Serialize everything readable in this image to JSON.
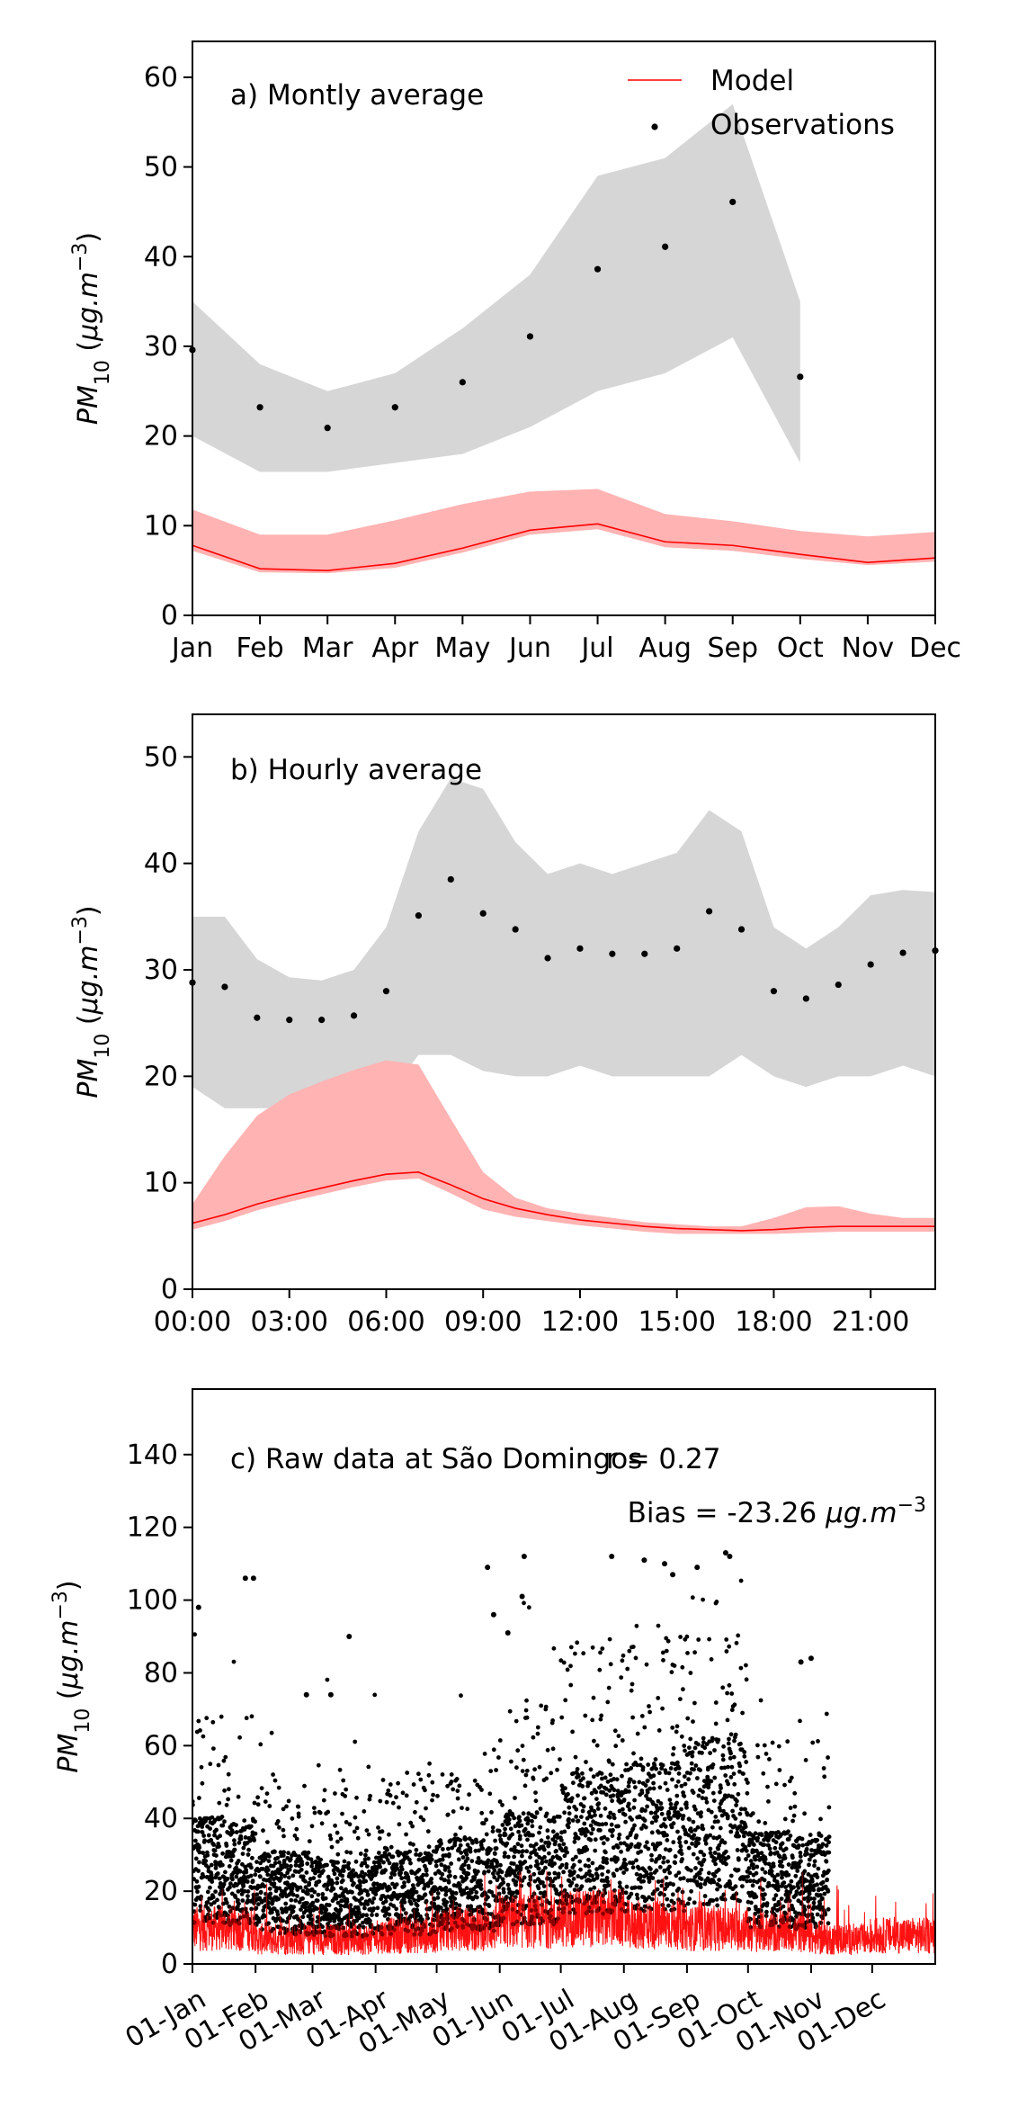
{
  "colors": {
    "model": "#ff0000",
    "model_band": "#ffb3b3",
    "obs": "#000000",
    "obs_band": "#d6d6d6"
  },
  "ylabel": "PM10 (μg.m−3)",
  "legend": {
    "model": "Model",
    "observations": "Observations"
  },
  "chart_data": [
    {
      "type": "line",
      "panel_label": "a) Montly average",
      "categories": [
        "Jan",
        "Feb",
        "Mar",
        "Apr",
        "May",
        "Jun",
        "Jul",
        "Aug",
        "Sep",
        "Oct",
        "Nov",
        "Dec"
      ],
      "ylim": [
        0,
        64
      ],
      "yticks": [
        0,
        10,
        20,
        30,
        40,
        50,
        60
      ],
      "series": [
        {
          "name": "Model",
          "values": [
            7.8,
            5.2,
            5.0,
            5.8,
            7.5,
            9.5,
            10.2,
            8.2,
            7.8,
            6.8,
            5.9,
            6.4
          ]
        },
        {
          "name": "Observations",
          "values": [
            29.6,
            23.2,
            20.9,
            23.2,
            26.0,
            31.1,
            38.6,
            41.1,
            46.1,
            26.6,
            null,
            null
          ]
        }
      ],
      "model_band": {
        "lower": [
          7.2,
          4.8,
          4.7,
          5.3,
          7.0,
          9.0,
          9.6,
          7.6,
          7.2,
          6.3,
          5.6,
          6.0
        ],
        "upper": [
          11.8,
          9.0,
          9.0,
          10.6,
          12.4,
          13.8,
          14.1,
          11.3,
          10.5,
          9.4,
          8.8,
          9.3
        ]
      },
      "obs_band": {
        "lower": [
          20,
          16,
          16,
          17,
          18,
          21,
          25,
          27,
          31,
          17,
          null,
          null
        ],
        "upper": [
          35,
          28,
          25,
          27,
          32,
          38,
          49,
          51,
          57,
          35,
          null,
          null
        ]
      }
    },
    {
      "type": "line",
      "panel_label": "b) Hourly average",
      "x_range": [
        0,
        23
      ],
      "xticks": [
        "00:00",
        "03:00",
        "06:00",
        "09:00",
        "12:00",
        "15:00",
        "18:00",
        "21:00"
      ],
      "ylim": [
        0,
        54
      ],
      "yticks": [
        0,
        10,
        20,
        30,
        40,
        50
      ],
      "series": [
        {
          "name": "Model",
          "values": [
            6.2,
            7.0,
            8.0,
            8.8,
            9.5,
            10.2,
            10.8,
            11.0,
            9.8,
            8.5,
            7.6,
            7.0,
            6.5,
            6.2,
            5.9,
            5.7,
            5.6,
            5.5,
            5.6,
            5.8,
            5.9,
            5.9,
            5.9,
            5.9
          ]
        },
        {
          "name": "Observations",
          "values": [
            28.8,
            28.4,
            25.5,
            25.3,
            25.3,
            25.7,
            28.0,
            35.1,
            38.5,
            35.3,
            33.8,
            31.1,
            32.0,
            31.5,
            31.5,
            32.0,
            35.5,
            33.8,
            28.0,
            27.3,
            28.6,
            30.5,
            31.6,
            31.8
          ]
        }
      ],
      "model_band": {
        "lower": [
          5.6,
          6.4,
          7.4,
          8.2,
          8.9,
          9.6,
          10.2,
          10.4,
          9.0,
          7.5,
          6.8,
          6.4,
          6.0,
          5.7,
          5.4,
          5.2,
          5.2,
          5.2,
          5.2,
          5.3,
          5.4,
          5.4,
          5.4,
          5.4
        ],
        "upper": [
          8.0,
          12.5,
          16.3,
          18.3,
          19.5,
          20.6,
          21.5,
          21.1,
          16.0,
          11.0,
          8.6,
          7.6,
          7.1,
          6.7,
          6.3,
          6.1,
          5.9,
          5.9,
          6.7,
          7.7,
          7.8,
          7.1,
          6.7,
          6.7
        ]
      },
      "obs_band": {
        "lower": [
          19,
          17,
          17,
          17,
          17,
          18,
          18,
          22,
          22,
          20.5,
          20,
          20,
          21,
          20,
          20,
          20,
          20,
          22,
          20,
          19,
          20,
          20,
          21,
          20
        ],
        "upper": [
          35,
          35,
          31,
          29.3,
          29,
          30,
          34,
          43,
          48,
          47,
          42,
          39,
          40,
          39,
          40,
          41,
          45,
          43,
          34,
          32,
          34,
          37,
          37.5,
          37.3
        ]
      }
    },
    {
      "type": "scatter",
      "panel_label": "c) Raw data at São Domingos",
      "r_label": "r = 0.27",
      "bias_label": "Bias = -23.26 μg.m−3",
      "xticks": [
        "01-Jan",
        "01-Feb",
        "01-Mar",
        "01-Apr",
        "01-May",
        "01-Jun",
        "01-Jul",
        "01-Aug",
        "01-Sep",
        "01-Oct",
        "01-Nov",
        "01-Dec"
      ],
      "xtick_days": [
        0,
        31,
        59,
        90,
        120,
        151,
        181,
        212,
        243,
        273,
        304,
        334
      ],
      "x_range_days": [
        0,
        365
      ],
      "ylim": [
        0,
        158
      ],
      "yticks": [
        0,
        20,
        40,
        60,
        80,
        100,
        120,
        140
      ],
      "obs_end_day": 313,
      "series": [
        {
          "name": "Model",
          "monthly_level": [
            10,
            7,
            7,
            8,
            10,
            12,
            13,
            11,
            10,
            9,
            7,
            8
          ]
        },
        {
          "name": "Observations",
          "monthly_mean": [
            30,
            23,
            21,
            23,
            26,
            31,
            39,
            41,
            46,
            27
          ],
          "monthly_max": [
            106,
            74,
            90,
            61,
            109,
            112,
            112,
            110,
            113,
            84
          ],
          "highlights": [
            {
              "x": 3,
              "y": 98
            },
            {
              "x": 26,
              "y": 106
            },
            {
              "x": 30,
              "y": 106
            },
            {
              "x": 56,
              "y": 74
            },
            {
              "x": 68,
              "y": 74
            },
            {
              "x": 77,
              "y": 90
            },
            {
              "x": 145,
              "y": 109
            },
            {
              "x": 148,
              "y": 96
            },
            {
              "x": 155,
              "y": 91
            },
            {
              "x": 163,
              "y": 112
            },
            {
              "x": 162,
              "y": 101
            },
            {
              "x": 206,
              "y": 112
            },
            {
              "x": 222,
              "y": 111
            },
            {
              "x": 232,
              "y": 110
            },
            {
              "x": 248,
              "y": 109
            },
            {
              "x": 262,
              "y": 113
            },
            {
              "x": 236,
              "y": 107
            },
            {
              "x": 264,
              "y": 112
            },
            {
              "x": 304,
              "y": 84
            },
            {
              "x": 299,
              "y": 83
            }
          ]
        }
      ]
    }
  ]
}
